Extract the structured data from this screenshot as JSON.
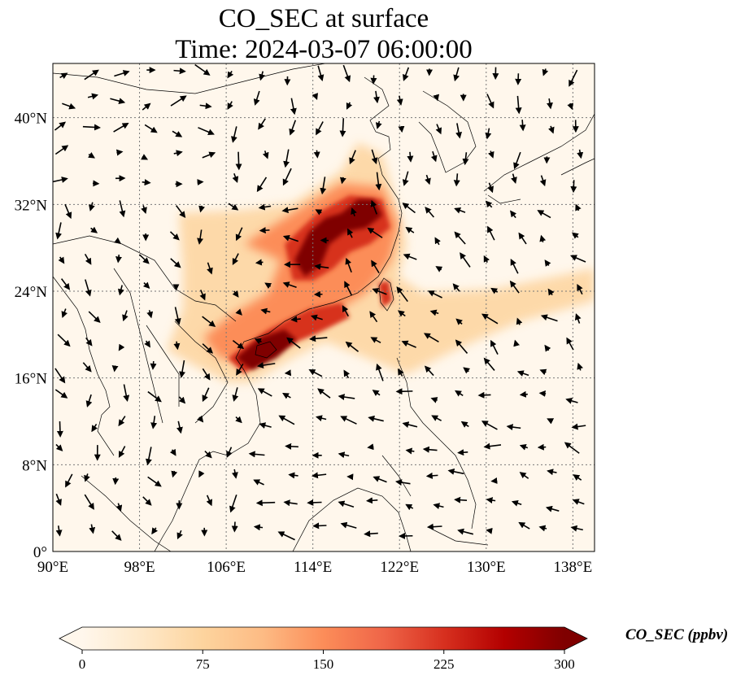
{
  "title": "CO_SEC at surface",
  "subtitle": "Time: 2024-03-07 06:00:00",
  "map": {
    "lon_range": [
      90,
      140
    ],
    "lat_range": [
      0,
      45
    ],
    "lon_ticks": [
      "90°E",
      "98°E",
      "106°E",
      "114°E",
      "122°E",
      "130°E",
      "138°E"
    ],
    "lat_ticks": [
      "0°",
      "8°N",
      "16°N",
      "24°N",
      "32°N",
      "40°N"
    ],
    "gridlines": true,
    "projection": "PlateCarree"
  },
  "colorbar": {
    "label": "CO_SEC (ppbv)",
    "ticks": [
      "0",
      "75",
      "150",
      "225",
      "300"
    ],
    "min": 0,
    "max": 300,
    "extend": "both",
    "colormap": "OrRd",
    "colors": [
      "#fff7ec",
      "#fee8c8",
      "#fdd49e",
      "#fdbb84",
      "#fc8d59",
      "#ef6548",
      "#d7301f",
      "#b30000",
      "#7f0000"
    ]
  },
  "colors": {
    "background": "#fff7ec",
    "coast": "#000000",
    "grid": "#777777"
  }
}
